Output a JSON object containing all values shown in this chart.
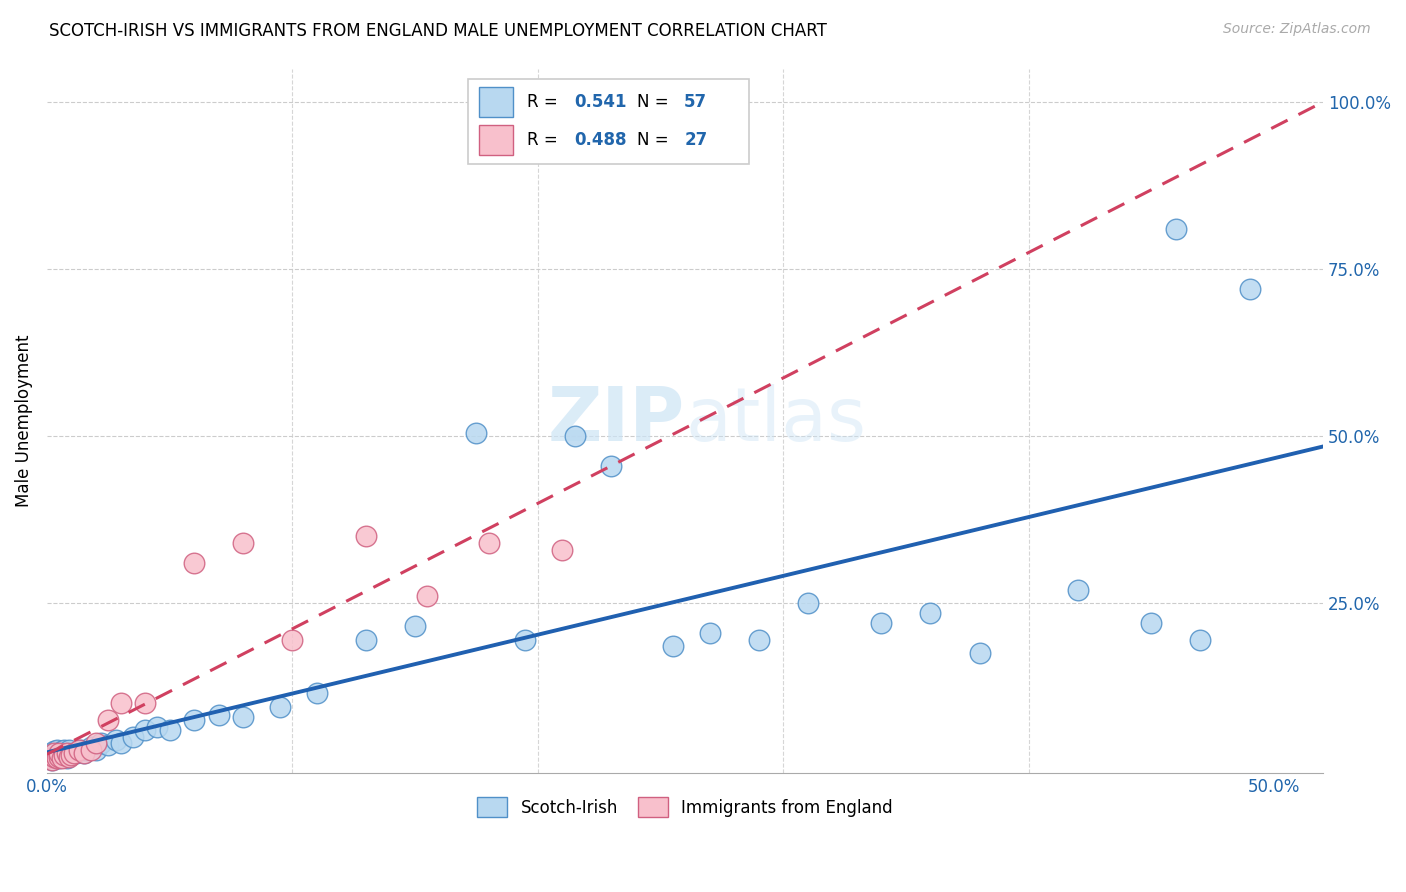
{
  "title": "SCOTCH-IRISH VS IMMIGRANTS FROM ENGLAND MALE UNEMPLOYMENT CORRELATION CHART",
  "source": "Source: ZipAtlas.com",
  "ylabel": "Male Unemployment",
  "ytick_vals": [
    0.25,
    0.5,
    0.75,
    1.0
  ],
  "ytick_labels": [
    "25.0%",
    "50.0%",
    "75.0%",
    "100.0%"
  ],
  "xlim": [
    0.0,
    0.52
  ],
  "ylim": [
    -0.005,
    1.05
  ],
  "legend_r1": "0.541",
  "legend_n1": "57",
  "legend_r2": "0.488",
  "legend_n2": "27",
  "color_blue_fill": "#b8d8f0",
  "color_blue_edge": "#5090c8",
  "color_pink_fill": "#f8c0cc",
  "color_pink_edge": "#d06080",
  "color_blue_line": "#2060b0",
  "color_pink_line": "#d04060",
  "color_blue_text": "#2166ac",
  "color_grid": "#cccccc",
  "scotch_irish_x": [
    0.001,
    0.002,
    0.002,
    0.003,
    0.003,
    0.004,
    0.004,
    0.005,
    0.005,
    0.006,
    0.006,
    0.007,
    0.007,
    0.008,
    0.008,
    0.009,
    0.009,
    0.01,
    0.011,
    0.012,
    0.013,
    0.014,
    0.015,
    0.016,
    0.018,
    0.02,
    0.022,
    0.025,
    0.028,
    0.03,
    0.035,
    0.04,
    0.045,
    0.05,
    0.06,
    0.07,
    0.08,
    0.095,
    0.11,
    0.13,
    0.15,
    0.175,
    0.195,
    0.215,
    0.23,
    0.255,
    0.27,
    0.29,
    0.31,
    0.34,
    0.36,
    0.38,
    0.42,
    0.45,
    0.46,
    0.47,
    0.49
  ],
  "scotch_irish_y": [
    0.02,
    0.015,
    0.025,
    0.018,
    0.028,
    0.02,
    0.03,
    0.018,
    0.025,
    0.02,
    0.028,
    0.022,
    0.03,
    0.018,
    0.025,
    0.022,
    0.03,
    0.022,
    0.025,
    0.025,
    0.028,
    0.03,
    0.025,
    0.03,
    0.035,
    0.03,
    0.04,
    0.038,
    0.045,
    0.04,
    0.05,
    0.06,
    0.065,
    0.06,
    0.075,
    0.082,
    0.08,
    0.095,
    0.115,
    0.195,
    0.215,
    0.505,
    0.195,
    0.5,
    0.455,
    0.185,
    0.205,
    0.195,
    0.25,
    0.22,
    0.235,
    0.175,
    0.27,
    0.22,
    0.81,
    0.195,
    0.72
  ],
  "england_x": [
    0.001,
    0.002,
    0.003,
    0.003,
    0.004,
    0.005,
    0.005,
    0.006,
    0.007,
    0.008,
    0.009,
    0.01,
    0.011,
    0.013,
    0.015,
    0.018,
    0.02,
    0.025,
    0.03,
    0.04,
    0.06,
    0.08,
    0.1,
    0.13,
    0.155,
    0.18,
    0.21
  ],
  "england_y": [
    0.018,
    0.015,
    0.02,
    0.025,
    0.018,
    0.02,
    0.025,
    0.018,
    0.022,
    0.025,
    0.02,
    0.022,
    0.025,
    0.03,
    0.025,
    0.03,
    0.04,
    0.075,
    0.1,
    0.1,
    0.31,
    0.34,
    0.195,
    0.35,
    0.26,
    0.34,
    0.33
  ],
  "watermark": "ZIPatlas",
  "watermark_color": "#cce4f5"
}
